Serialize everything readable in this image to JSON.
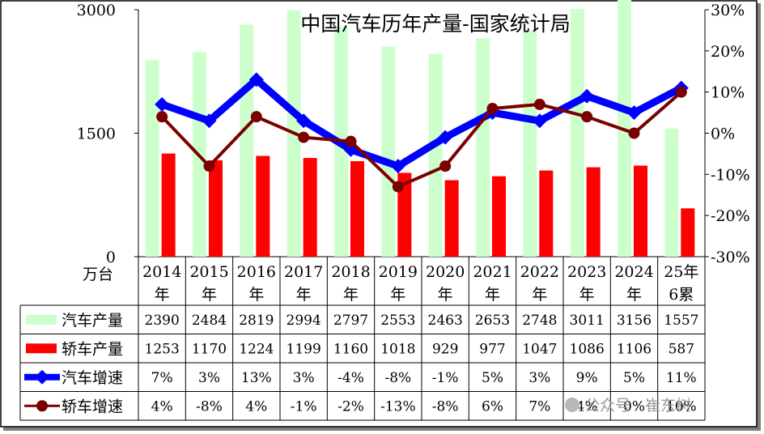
{
  "chart_data": {
    "type": "bar",
    "title": "中国汽车历年产量-国家统计局",
    "unit_label": "万台",
    "categories": [
      {
        "line1": "2014",
        "line2": "年"
      },
      {
        "line1": "2015",
        "line2": "年"
      },
      {
        "line1": "2016",
        "line2": "年"
      },
      {
        "line1": "2017",
        "line2": "年"
      },
      {
        "line1": "2018",
        "line2": "年"
      },
      {
        "line1": "2019",
        "line2": "年"
      },
      {
        "line1": "2020",
        "line2": "年"
      },
      {
        "line1": "2021",
        "line2": "年"
      },
      {
        "line1": "2022",
        "line2": "年"
      },
      {
        "line1": "2023",
        "line2": "年"
      },
      {
        "line1": "2024",
        "line2": "年"
      },
      {
        "line1": "25年",
        "line2": "6累"
      }
    ],
    "y_left": {
      "min": 0,
      "max": 3000,
      "ticks": [
        "0",
        "1500",
        "3000"
      ]
    },
    "y_right": {
      "min": -30,
      "max": 30,
      "ticks": [
        "-30%",
        "-20%",
        "-10%",
        "0%",
        "10%",
        "20%",
        "30%"
      ]
    },
    "series": [
      {
        "name": "汽车产量",
        "kind": "bar",
        "axis": "left",
        "color": "#ccffcc",
        "values": [
          2390,
          2484,
          2819,
          2994,
          2797,
          2553,
          2463,
          2653,
          2748,
          3011,
          3156,
          1557
        ],
        "labels": [
          "2390",
          "2484",
          "2819",
          "2994",
          "2797",
          "2553",
          "2463",
          "2653",
          "2748",
          "3011",
          "3156",
          "1557"
        ]
      },
      {
        "name": "轿车产量",
        "kind": "bar",
        "axis": "left",
        "color": "#ff0000",
        "values": [
          1253,
          1170,
          1224,
          1199,
          1160,
          1018,
          929,
          977,
          1047,
          1086,
          1106,
          587
        ],
        "labels": [
          "1253",
          "1170",
          "1224",
          "1199",
          "1160",
          "1018",
          "929",
          "977",
          "1047",
          "1086",
          "1106",
          "587"
        ]
      },
      {
        "name": "汽车增速",
        "kind": "line",
        "axis": "right",
        "color": "#0000ff",
        "values": [
          7,
          3,
          13,
          3,
          -4,
          -8,
          -1,
          5,
          3,
          9,
          5,
          11
        ],
        "labels": [
          "7%",
          "3%",
          "13%",
          "3%",
          "-4%",
          "-8%",
          "-1%",
          "5%",
          "3%",
          "9%",
          "5%",
          "11%"
        ]
      },
      {
        "name": "轿车增速",
        "kind": "line",
        "axis": "right",
        "color": "#7b0000",
        "values": [
          4,
          -8,
          4,
          -1,
          -2,
          -13,
          -8,
          6,
          7,
          4,
          0,
          10
        ],
        "labels": [
          "4%",
          "-8%",
          "4%",
          "-1%",
          "-2%",
          "-13%",
          "-8%",
          "6%",
          "7%",
          "4%",
          "0%",
          "10%"
        ]
      }
    ],
    "grid": false,
    "legend": "data-table"
  },
  "watermark": "公众号 · 崔东树"
}
